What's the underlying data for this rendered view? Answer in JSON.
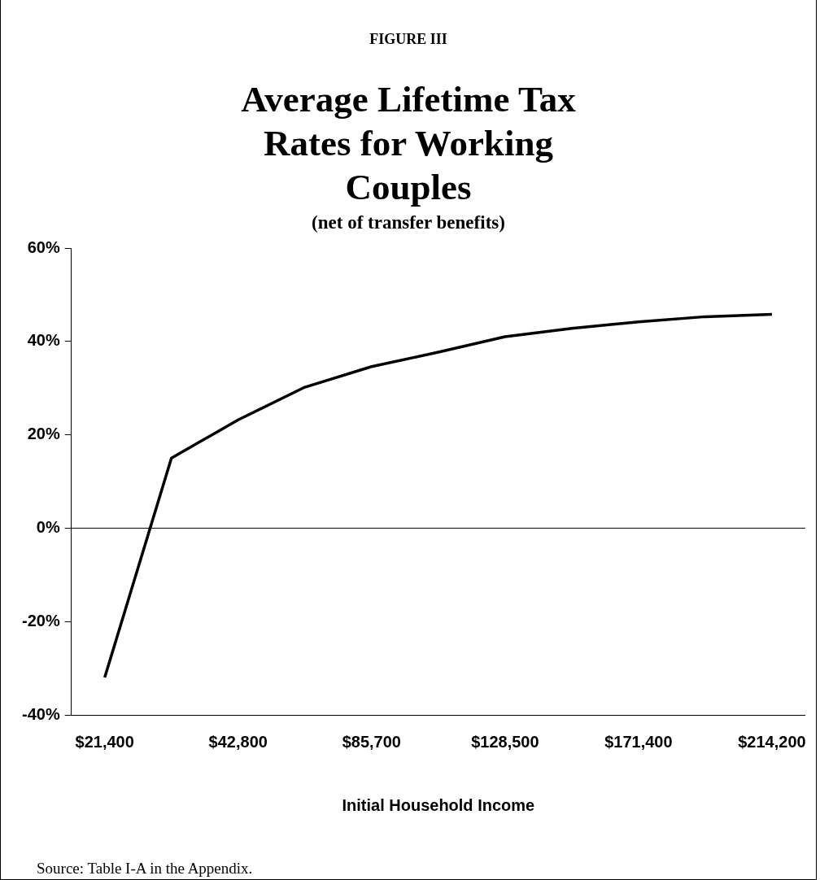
{
  "chart_data": {
    "type": "line",
    "title": "Average Lifetime Tax Rates for Working Couples",
    "subtitle": "(net of transfer benefits)",
    "xlabel": "Initial Household Income",
    "annotations": [
      "FIGURE III",
      "Source: Table I-A in the Appendix."
    ],
    "categories": [
      "$21,400",
      null,
      "$42,800",
      null,
      "$85,700",
      null,
      "$128,500",
      null,
      "$171,400",
      null,
      "$214,200"
    ],
    "series": [
      {
        "color": "#000000",
        "values": [
          -32,
          15,
          23.2,
          30.2,
          34.6,
          37.7,
          41,
          42.8,
          44.2,
          45.3,
          45.8
        ]
      }
    ],
    "ylim": [
      -40,
      60
    ],
    "yticks": [
      {
        "value": -40,
        "label": "-40%"
      },
      {
        "value": -20,
        "label": "-20%"
      },
      {
        "value": 0,
        "label": "0%"
      },
      {
        "value": 20,
        "label": "20%"
      },
      {
        "value": 40,
        "label": "40%"
      },
      {
        "value": 60,
        "label": "60%"
      }
    ],
    "ref_lines": [
      {
        "axis": "y",
        "value": 0,
        "color": "#000000"
      }
    ]
  }
}
